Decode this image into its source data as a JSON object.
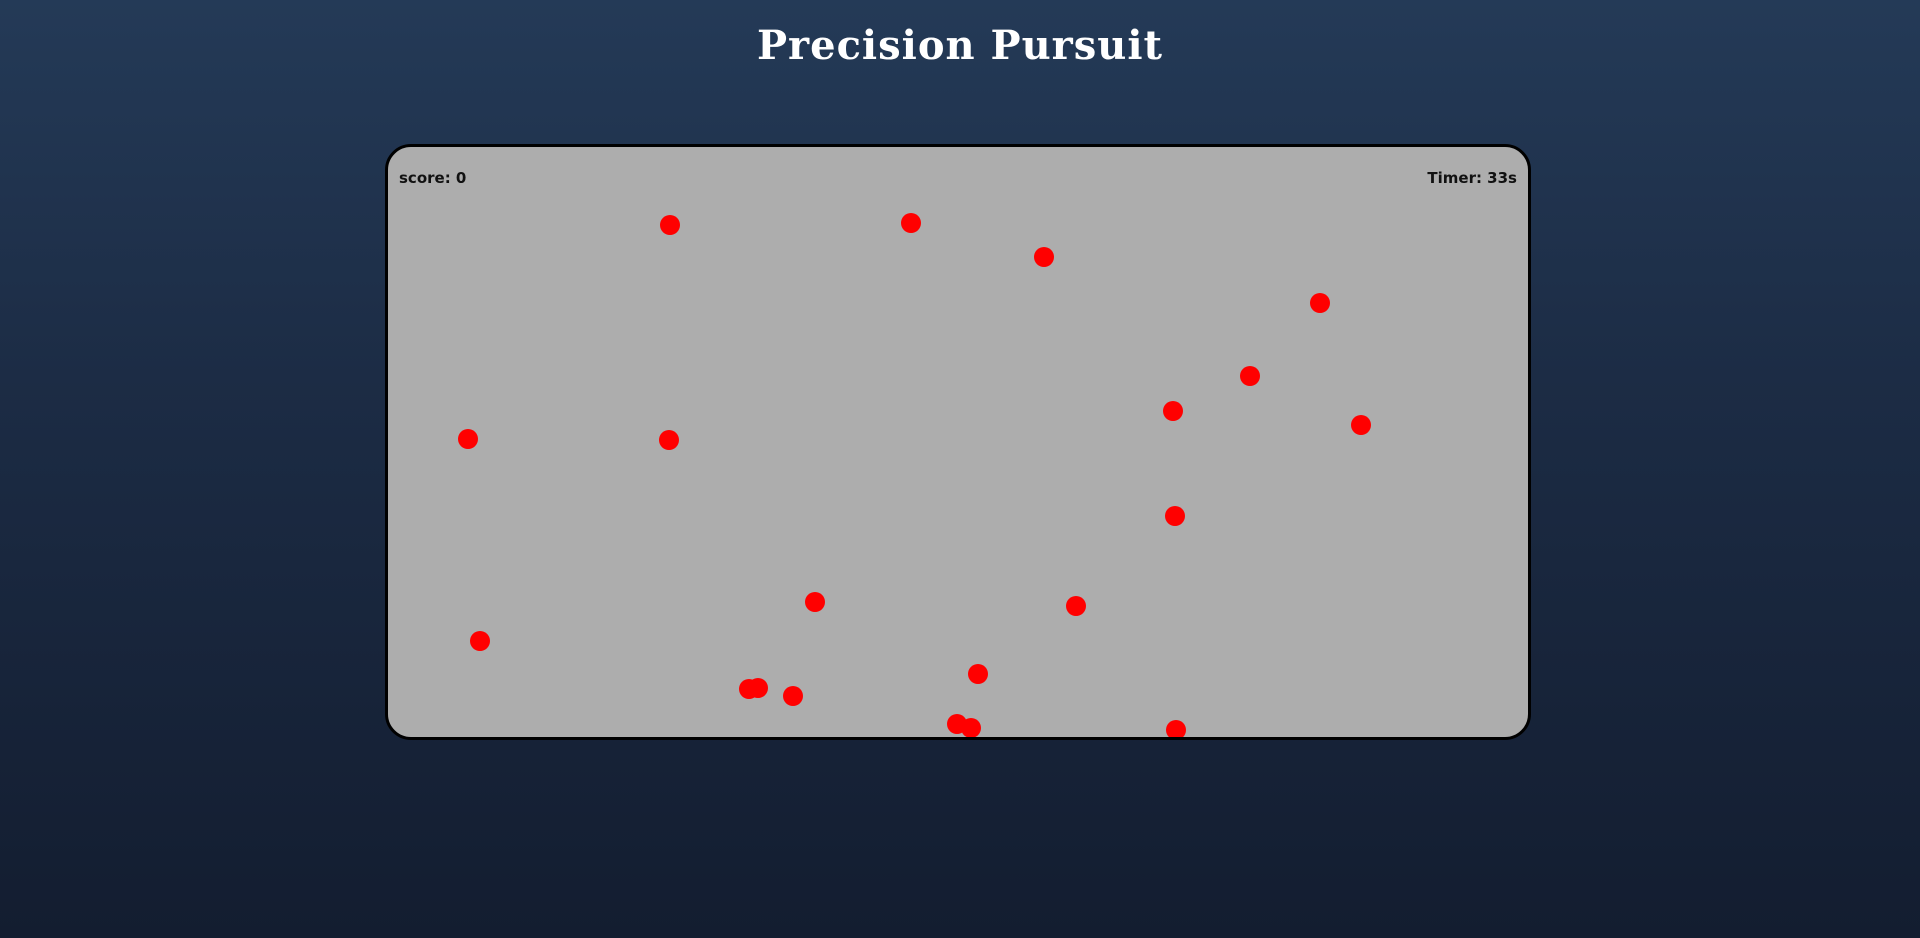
{
  "header": {
    "title": "Precision Pursuit"
  },
  "hud": {
    "score_text": "score: 0",
    "timer_text": "Timer: 33s"
  },
  "game": {
    "target_color": "#ff0000",
    "board_color": "#adadad",
    "target_count": 22
  }
}
